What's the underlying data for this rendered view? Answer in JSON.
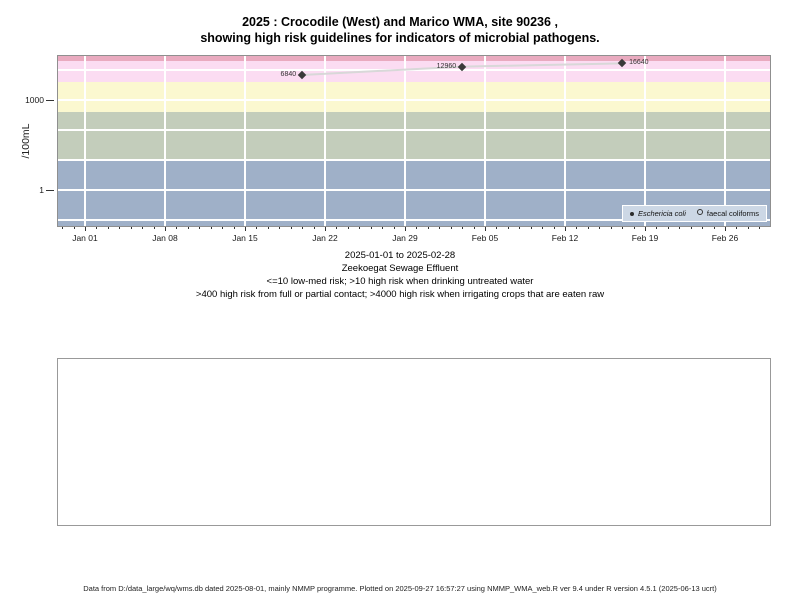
{
  "title": {
    "line1": "2025 : Crocodile (West) and Marico WMA, site 90236 ,",
    "line2": "showing high risk guidelines for indicators of microbial pathogens."
  },
  "subtitle": {
    "date_range": "2025-01-01 to 2025-02-28",
    "site_name": "Zeekoegat Sewage Effluent",
    "guideline1": "<=10 low-med risk; >10 high risk when drinking untreated water",
    "guideline2": ">400 high risk from full or partial contact; >4000 high risk when irrigating crops that are eaten raw"
  },
  "footer": {
    "text": "Data from D:/data_large/wq/wms.db dated 2025-08-01, mainly NMMP programme. Plotted on 2025-09-27 16:57:27 using NMMP_WMA_web.R ver 9.4 under R version 4.5.1 (2025-06-13 ucrt)"
  },
  "chart_data": {
    "type": "scatter",
    "title": "2025 : Crocodile (West) and Marico WMA, site 90236 , showing high risk guidelines for indicators of microbial pathogens.",
    "y_axis": {
      "label": "/100mL",
      "scale": "log10",
      "lim": [
        0.063,
        29300
      ],
      "ticks": [
        {
          "value": 1000,
          "label": "1000"
        },
        {
          "value": 1,
          "label": "1"
        }
      ]
    },
    "x_axis": {
      "lim_days": [
        -2.36,
        59.94
      ],
      "minor_tick_every_days": 1,
      "ticks": [
        {
          "day": 0,
          "label": "Jan 01"
        },
        {
          "day": 7,
          "label": "Jan 08"
        },
        {
          "day": 14,
          "label": "Jan 15"
        },
        {
          "day": 21,
          "label": "Jan 22"
        },
        {
          "day": 28,
          "label": "Jan 29"
        },
        {
          "day": 35,
          "label": "Feb 05"
        },
        {
          "day": 42,
          "label": "Feb 12"
        },
        {
          "day": 49,
          "label": "Feb 19"
        },
        {
          "day": 56,
          "label": "Feb 26"
        }
      ]
    },
    "grid": {
      "color": "#ffffff",
      "h_values": [
        10000,
        1000,
        100,
        10,
        1,
        0.1
      ],
      "v_days": [
        0,
        7,
        14,
        21,
        28,
        35,
        42,
        49,
        56
      ]
    },
    "risk_bands": [
      {
        "name": "band-above-20000",
        "from": 20000,
        "to": 29300,
        "color": "#e9aabf"
      },
      {
        "name": "band-4000-20000-irrigation-high-risk",
        "from": 4000,
        "to": 20000,
        "color": "#fbdcf2"
      },
      {
        "name": "band-400-4000-contact-high-risk",
        "from": 400,
        "to": 4000,
        "color": "#fbf8d0"
      },
      {
        "name": "band-10-400-drinking-high-risk",
        "from": 10,
        "to": 400,
        "color": "#c3cdbb"
      },
      {
        "name": "band-below-10-low-med-risk",
        "from": 0.063,
        "to": 10,
        "color": "#9fb0c8"
      }
    ],
    "series": [
      {
        "name": "Eschericia coli",
        "marker": "filled-diamond",
        "marker_color": "#3a3a3a",
        "line_color": "#d8d8d8",
        "points": [
          {
            "day": 19,
            "value": 6840,
            "label": "6840",
            "label_side": "left"
          },
          {
            "day": 33,
            "value": 12960,
            "label": "12960",
            "label_side": "left"
          },
          {
            "day": 47,
            "value": 16640,
            "label": "16640",
            "label_side": "right"
          }
        ]
      },
      {
        "name": "faecal coliforms",
        "marker": "open-circle",
        "marker_color": "#333333",
        "points": []
      }
    ],
    "legend": {
      "position": "bottom-right",
      "items": [
        {
          "label": "Eschericia coli",
          "marker": "filled-dot",
          "italic": true
        },
        {
          "label": "faecal coliforms",
          "marker": "open-circle",
          "italic": false
        }
      ]
    }
  }
}
